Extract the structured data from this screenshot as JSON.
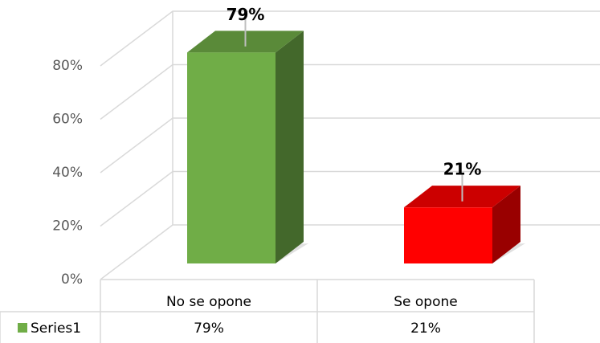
{
  "chart_data": {
    "type": "bar",
    "categories": [
      "No se opone",
      "Se opone"
    ],
    "series": [
      {
        "name": "Series1",
        "color": "#70ad47",
        "point_colors": [
          "#70ad47",
          "#ff0000"
        ],
        "values": [
          79,
          21
        ],
        "value_labels": [
          "79%",
          "21%"
        ]
      }
    ],
    "ylim": [
      0,
      80
    ],
    "yticks": [
      {
        "value": 0,
        "label": "0%"
      },
      {
        "value": 20,
        "label": "20%"
      },
      {
        "value": 40,
        "label": "40%"
      },
      {
        "value": 60,
        "label": "60%"
      },
      {
        "value": 80,
        "label": "80%"
      }
    ],
    "grid": true,
    "data_table": true
  }
}
